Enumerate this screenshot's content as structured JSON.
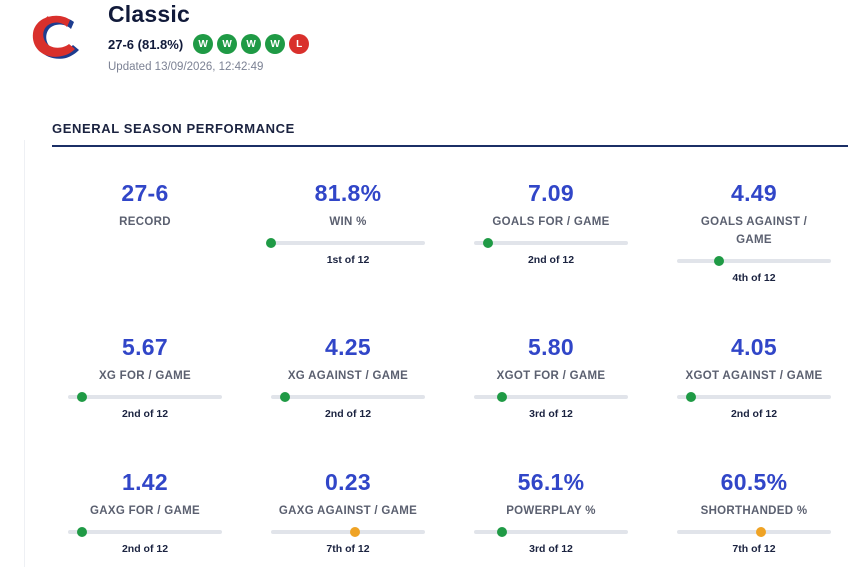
{
  "team": {
    "name": "Classic",
    "record_text": "27-6 (81.8%)",
    "form": [
      "W",
      "W",
      "W",
      "W",
      "L"
    ],
    "updated": "Updated 13/09/2026, 12:42:49"
  },
  "section": {
    "title": "GENERAL SEASON PERFORMANCE"
  },
  "colors": {
    "accent": "#3146c8",
    "win": "#1f9a45",
    "loss": "#d9302c",
    "mid_rank": "#efa325",
    "rule": "#1b2f66"
  },
  "stats": [
    {
      "value": "27-6",
      "label": "RECORD"
    },
    {
      "value": "81.8%",
      "label": "WIN %",
      "rank": "1st of 12",
      "rank_num": 1,
      "of": 12,
      "tone": "green"
    },
    {
      "value": "7.09",
      "label": "GOALS FOR / GAME",
      "rank": "2nd of 12",
      "rank_num": 2,
      "of": 12,
      "tone": "green"
    },
    {
      "value": "4.49",
      "label": "GOALS AGAINST / GAME",
      "rank": "4th of 12",
      "rank_num": 4,
      "of": 12,
      "tone": "green"
    },
    {
      "value": "5.67",
      "label": "XG FOR / GAME",
      "rank": "2nd of 12",
      "rank_num": 2,
      "of": 12,
      "tone": "green"
    },
    {
      "value": "4.25",
      "label": "XG AGAINST / GAME",
      "rank": "2nd of 12",
      "rank_num": 2,
      "of": 12,
      "tone": "green"
    },
    {
      "value": "5.80",
      "label": "XGOT FOR / GAME",
      "rank": "3rd of 12",
      "rank_num": 3,
      "of": 12,
      "tone": "green"
    },
    {
      "value": "4.05",
      "label": "XGOT AGAINST / GAME",
      "rank": "2nd of 12",
      "rank_num": 2,
      "of": 12,
      "tone": "green"
    },
    {
      "value": "1.42",
      "label": "GAXG FOR / GAME",
      "rank": "2nd of 12",
      "rank_num": 2,
      "of": 12,
      "tone": "green"
    },
    {
      "value": "0.23",
      "label": "GAXG AGAINST / GAME",
      "rank": "7th of 12",
      "rank_num": 7,
      "of": 12,
      "tone": "orange"
    },
    {
      "value": "56.1%",
      "label": "POWERPLAY %",
      "rank": "3rd of 12",
      "rank_num": 3,
      "of": 12,
      "tone": "green"
    },
    {
      "value": "60.5%",
      "label": "SHORTHANDED %",
      "rank": "7th of 12",
      "rank_num": 7,
      "of": 12,
      "tone": "orange"
    }
  ]
}
